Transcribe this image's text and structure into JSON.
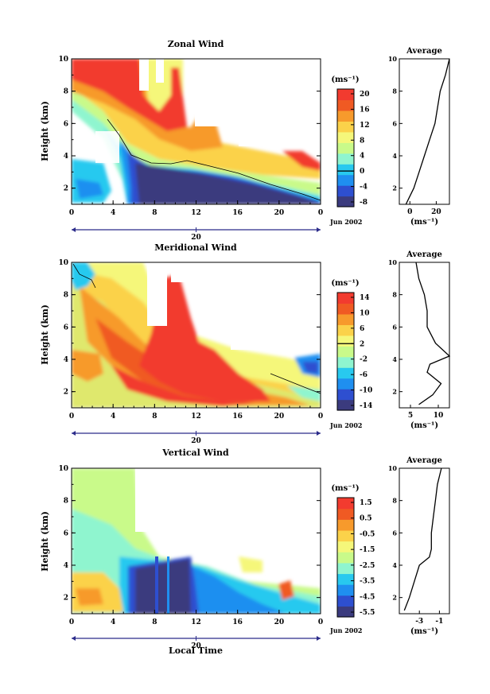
{
  "colormap": [
    "#3b3b7e",
    "#2e4fd0",
    "#1f8ff0",
    "#28c9ef",
    "#8ff5cf",
    "#c9fa8a",
    "#f5f77a",
    "#fbd24a",
    "#f79a2c",
    "#f05a23",
    "#f23b2f"
  ],
  "xaxis": {
    "ticks": [
      "0",
      "4",
      "8",
      "12",
      "16",
      "20",
      "0"
    ],
    "day_label": "20",
    "date_label": "Jun 2002",
    "xlabel": "Local Time"
  },
  "panels": [
    {
      "title": "Zonal Wind",
      "ylabel": "Height (km)",
      "yticks": [
        "2",
        "4",
        "6",
        "8",
        "10"
      ],
      "colorbar": {
        "unit": "(ms⁻¹)",
        "ticks": [
          "20",
          "16",
          "12",
          "8",
          "4",
          "0",
          "-4",
          "-8"
        ],
        "zero_line": "0"
      },
      "profile": {
        "title": "Average",
        "yticks": [
          "2",
          "4",
          "6",
          "8",
          "10"
        ],
        "xticks": [
          "0",
          "20"
        ],
        "unit": "(ms⁻¹)"
      }
    },
    {
      "title": "Meridional Wind",
      "ylabel": "Height (km)",
      "yticks": [
        "2",
        "4",
        "6",
        "8",
        "10"
      ],
      "colorbar": {
        "unit": "(ms⁻¹)",
        "ticks": [
          "14",
          "10",
          "6",
          "2",
          "-2",
          "-6",
          "-10",
          "-14"
        ],
        "zero_line": "2"
      },
      "profile": {
        "title": "Average",
        "yticks": [
          "2",
          "4",
          "6",
          "8",
          "10"
        ],
        "xticks": [
          "5",
          "10"
        ],
        "unit": "(ms⁻¹)"
      }
    },
    {
      "title": "Vertical Wind",
      "ylabel": "Height (km)",
      "yticks": [
        "2",
        "4",
        "6",
        "8",
        "10"
      ],
      "colorbar": {
        "unit": "(ms⁻¹)",
        "ticks": [
          "1.5",
          "0.5",
          "-0.5",
          "-1.5",
          "-2.5",
          "-3.5",
          "-4.5",
          "-5.5"
        ],
        "zero_line": null
      },
      "profile": {
        "title": "Average",
        "yticks": [
          "2",
          "4",
          "6",
          "8",
          "10"
        ],
        "xticks": [
          "-3",
          "-1"
        ],
        "unit": "(ms⁻¹)"
      }
    }
  ],
  "chart_data": [
    {
      "type": "heatmap",
      "title": "Zonal Wind",
      "xlabel": "Local Time",
      "ylabel": "Height (km)",
      "xlim": [
        0,
        24
      ],
      "ylim": [
        1,
        10
      ],
      "colorbar_range": [
        -8,
        22
      ],
      "description_points": {
        "x": [
          0,
          4,
          6,
          8,
          12,
          16,
          20,
          24
        ],
        "strong_east_top_height": [
          6.5,
          6.2,
          5.0,
          4.0,
          3.2,
          2.7,
          2.2,
          1.8
        ]
      },
      "average_profile": {
        "height": [
          1,
          2,
          3,
          4,
          5,
          6,
          7,
          8,
          9,
          10
        ],
        "value": [
          -3,
          3,
          7,
          11,
          15,
          19,
          21,
          23,
          27,
          30
        ],
        "xlim": [
          -8,
          30
        ]
      }
    },
    {
      "type": "heatmap",
      "title": "Meridional Wind",
      "xlabel": "Local Time",
      "ylabel": "Height (km)",
      "xlim": [
        0,
        24
      ],
      "ylim": [
        1,
        10
      ],
      "colorbar_range": [
        -16,
        16
      ],
      "average_profile": {
        "height": [
          1.2,
          1.8,
          2.5,
          3.2,
          3.7,
          4.2,
          5.0,
          6.0,
          7.0,
          8.0,
          9.0,
          10.0
        ],
        "value": [
          6.5,
          9.0,
          10.5,
          8.0,
          8.5,
          12.0,
          9.5,
          8.0,
          8.0,
          7.5,
          6.5,
          6.0
        ],
        "xlim": [
          3,
          12
        ]
      }
    },
    {
      "type": "heatmap",
      "title": "Vertical Wind",
      "xlabel": "Local Time",
      "ylabel": "Height (km)",
      "xlim": [
        0,
        24
      ],
      "ylim": [
        1,
        10
      ],
      "colorbar_range": [
        -6.0,
        2.0
      ],
      "average_profile": {
        "height": [
          1.2,
          2.0,
          3.0,
          4.0,
          4.5,
          5.0,
          6.0,
          7.0,
          8.0,
          9.0,
          10.0
        ],
        "value": [
          -4.5,
          -4.0,
          -3.5,
          -3.0,
          -2.0,
          -1.8,
          -1.8,
          -1.6,
          -1.4,
          -1.2,
          -0.8
        ],
        "xlim": [
          -5,
          0
        ]
      }
    }
  ]
}
